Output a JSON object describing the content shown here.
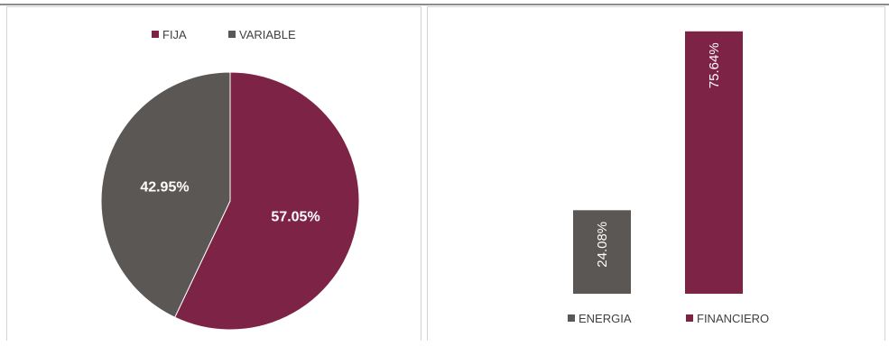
{
  "chart_data": [
    {
      "type": "pie",
      "title": "",
      "categories": [
        "FIJA",
        "VARIABLE"
      ],
      "values": [
        57.05,
        42.95
      ],
      "data_labels": [
        "57.05%",
        "42.95%"
      ],
      "colors": [
        "#7d2346",
        "#5b5755"
      ],
      "legend": "top"
    },
    {
      "type": "bar",
      "title": "",
      "categories": [
        "ENERGIA",
        "FINANCIERO"
      ],
      "values": [
        24.08,
        75.64
      ],
      "data_labels": [
        "24.08%",
        "75.64%"
      ],
      "colors": [
        "#5b5755",
        "#7d2346"
      ],
      "ylim": [
        0,
        80
      ],
      "legend": "bottom",
      "grid": false
    }
  ],
  "colors": {
    "burgundy": "#7d2346",
    "gray": "#5b5755"
  }
}
